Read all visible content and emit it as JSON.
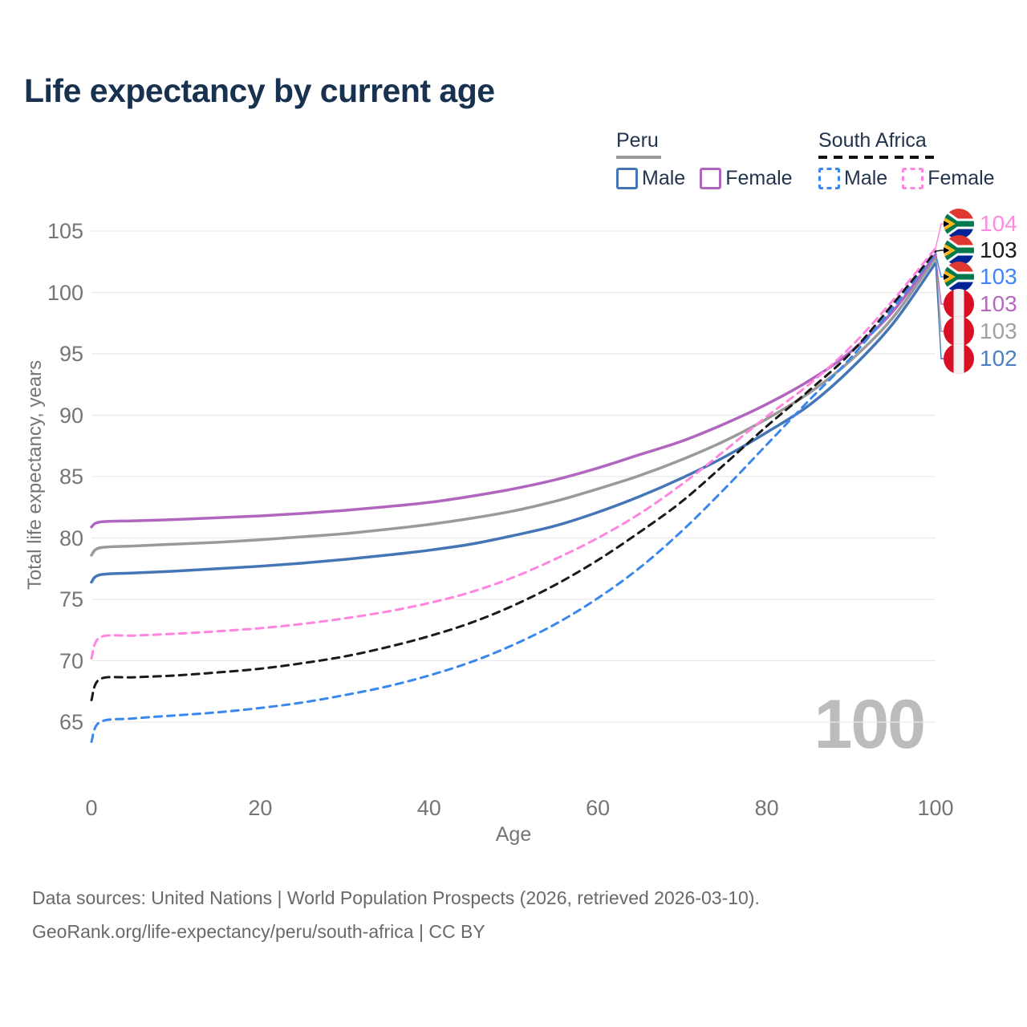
{
  "title": "Life expectancy by current age",
  "watermark_age": "100",
  "legend": {
    "peru": {
      "label": "Peru",
      "male": "Male",
      "female": "Female"
    },
    "south_africa": {
      "label": "South Africa",
      "male": "Male",
      "female": "Female"
    }
  },
  "footer": {
    "line1": "Data sources: United Nations | World Population Prospects (2026, retrieved 2026-03-10).",
    "line2": "GeoRank.org/life-expectancy/peru/south-africa | CC BY"
  },
  "colors": {
    "title_text": "#17314f",
    "legend_text": "#23344e",
    "axis_text": "#757575",
    "gridline": "#e9e9e9",
    "watermark": "#bcbcbc",
    "peru_male": "#4575b5",
    "peru_female": "#b066be",
    "peru_total": "#9a9a9a",
    "sa_male": "#3a87ee",
    "sa_female": "#ff85e0",
    "sa_total": "#1a1a1a"
  },
  "chart_data": {
    "type": "line",
    "title": "Life expectancy by current age",
    "xlabel": "Age",
    "ylabel": "Total life expectancy, years",
    "xlim": [
      0,
      100
    ],
    "ylim": [
      65,
      105
    ],
    "xticks": [
      0,
      20,
      40,
      60,
      80,
      100
    ],
    "yticks": [
      105,
      100,
      95,
      90,
      85,
      80,
      75,
      70,
      65
    ],
    "grid": "horizontal-only",
    "legend_position": "top-right",
    "x": [
      0,
      1,
      5,
      10,
      15,
      20,
      25,
      30,
      35,
      40,
      45,
      50,
      55,
      60,
      65,
      70,
      75,
      80,
      85,
      90,
      95,
      100
    ],
    "series": [
      {
        "name": "Peru Male",
        "country": "Peru",
        "sex": "Male",
        "style": "solid",
        "color": "#4575b5",
        "flag": "peru",
        "end_label": "102",
        "end_label_color": "#4a7fc1",
        "values": [
          76.4,
          77.0,
          77.15,
          77.3,
          77.5,
          77.7,
          77.95,
          78.25,
          78.6,
          79.0,
          79.5,
          80.2,
          81.0,
          82.1,
          83.4,
          84.9,
          86.6,
          88.6,
          90.8,
          93.8,
          97.5,
          102.4
        ]
      },
      {
        "name": "Peru Female",
        "country": "Peru",
        "sex": "Female",
        "style": "solid",
        "color": "#b066be",
        "flag": "peru",
        "end_label": "103",
        "end_label_color": "#b668c0",
        "values": [
          80.9,
          81.3,
          81.4,
          81.5,
          81.65,
          81.8,
          82.0,
          82.25,
          82.55,
          82.9,
          83.4,
          84.0,
          84.75,
          85.7,
          86.8,
          87.9,
          89.3,
          90.9,
          92.8,
          95.2,
          98.5,
          103.1
        ]
      },
      {
        "name": "Peru Both sexes",
        "country": "Peru",
        "sex": "Both",
        "style": "solid",
        "color": "#9a9a9a",
        "flag": "peru",
        "end_label": "103",
        "end_label_color": "#a0a0a0",
        "values": [
          78.6,
          79.2,
          79.35,
          79.5,
          79.65,
          79.85,
          80.1,
          80.35,
          80.7,
          81.1,
          81.6,
          82.2,
          83.0,
          84.0,
          85.1,
          86.4,
          87.9,
          89.7,
          91.8,
          94.5,
          98.0,
          102.85
        ]
      },
      {
        "name": "South Africa Male",
        "country": "South Africa",
        "sex": "Male",
        "style": "dashed",
        "color": "#3a87ee",
        "flag": "south-africa",
        "end_label": "103",
        "end_label_color": "#4285f4",
        "values": [
          63.4,
          65.0,
          65.3,
          65.55,
          65.8,
          66.15,
          66.6,
          67.2,
          67.9,
          68.8,
          69.9,
          71.3,
          73.0,
          75.1,
          77.6,
          80.6,
          84.0,
          87.6,
          91.2,
          94.7,
          98.8,
          103.2
        ]
      },
      {
        "name": "South Africa Female",
        "country": "South Africa",
        "sex": "Female",
        "style": "dashed",
        "color": "#ff85e0",
        "flag": "south-africa",
        "end_label": "104",
        "end_label_color": "#ff8ae2",
        "values": [
          70.2,
          71.9,
          72.05,
          72.2,
          72.4,
          72.65,
          73.0,
          73.45,
          74.0,
          74.7,
          75.6,
          76.8,
          78.3,
          80.0,
          82.0,
          84.4,
          87.1,
          89.9,
          92.5,
          95.6,
          99.4,
          103.6
        ]
      },
      {
        "name": "South Africa Both sexes",
        "country": "South Africa",
        "sex": "Both",
        "style": "dashed",
        "color": "#1a1a1a",
        "flag": "south-africa",
        "end_label": "103",
        "end_label_color": "#1a1a1a",
        "values": [
          66.8,
          68.5,
          68.65,
          68.8,
          69.05,
          69.35,
          69.8,
          70.35,
          71.1,
          72.0,
          73.1,
          74.5,
          76.2,
          78.2,
          80.5,
          83.0,
          86.0,
          89.1,
          92.0,
          95.1,
          99.1,
          103.35
        ]
      }
    ]
  }
}
